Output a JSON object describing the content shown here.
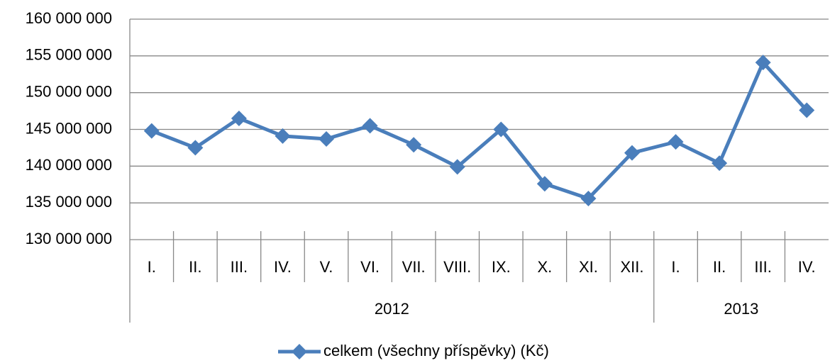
{
  "chart_data": {
    "type": "line",
    "categories": [
      "I.",
      "II.",
      "III.",
      "IV.",
      "V.",
      "VI.",
      "VII.",
      "VIII.",
      "IX.",
      "X.",
      "XI.",
      "XII.",
      "I.",
      "II.",
      "III.",
      "IV."
    ],
    "groups": [
      {
        "label": "2012",
        "span": 12
      },
      {
        "label": "2013",
        "span": 4
      }
    ],
    "series": [
      {
        "name": "celkem (všechny příspěvky) (Kč)",
        "color": "#4a7ebb",
        "values": [
          144800000,
          142500000,
          146500000,
          144100000,
          143700000,
          145500000,
          142900000,
          139900000,
          145000000,
          137600000,
          135600000,
          141800000,
          143300000,
          140400000,
          154100000,
          147600000
        ]
      }
    ],
    "ylim": [
      130000000,
      160000000
    ],
    "yticks": [
      {
        "value": 130000000,
        "label": "130 000 000"
      },
      {
        "value": 135000000,
        "label": "135 000 000"
      },
      {
        "value": 140000000,
        "label": "140 000 000"
      },
      {
        "value": 145000000,
        "label": "145 000 000"
      },
      {
        "value": 150000000,
        "label": "150 000 000"
      },
      {
        "value": 155000000,
        "label": "155 000 000"
      },
      {
        "value": 160000000,
        "label": "160 000 000"
      }
    ],
    "grid": true,
    "legend": "bottom"
  }
}
